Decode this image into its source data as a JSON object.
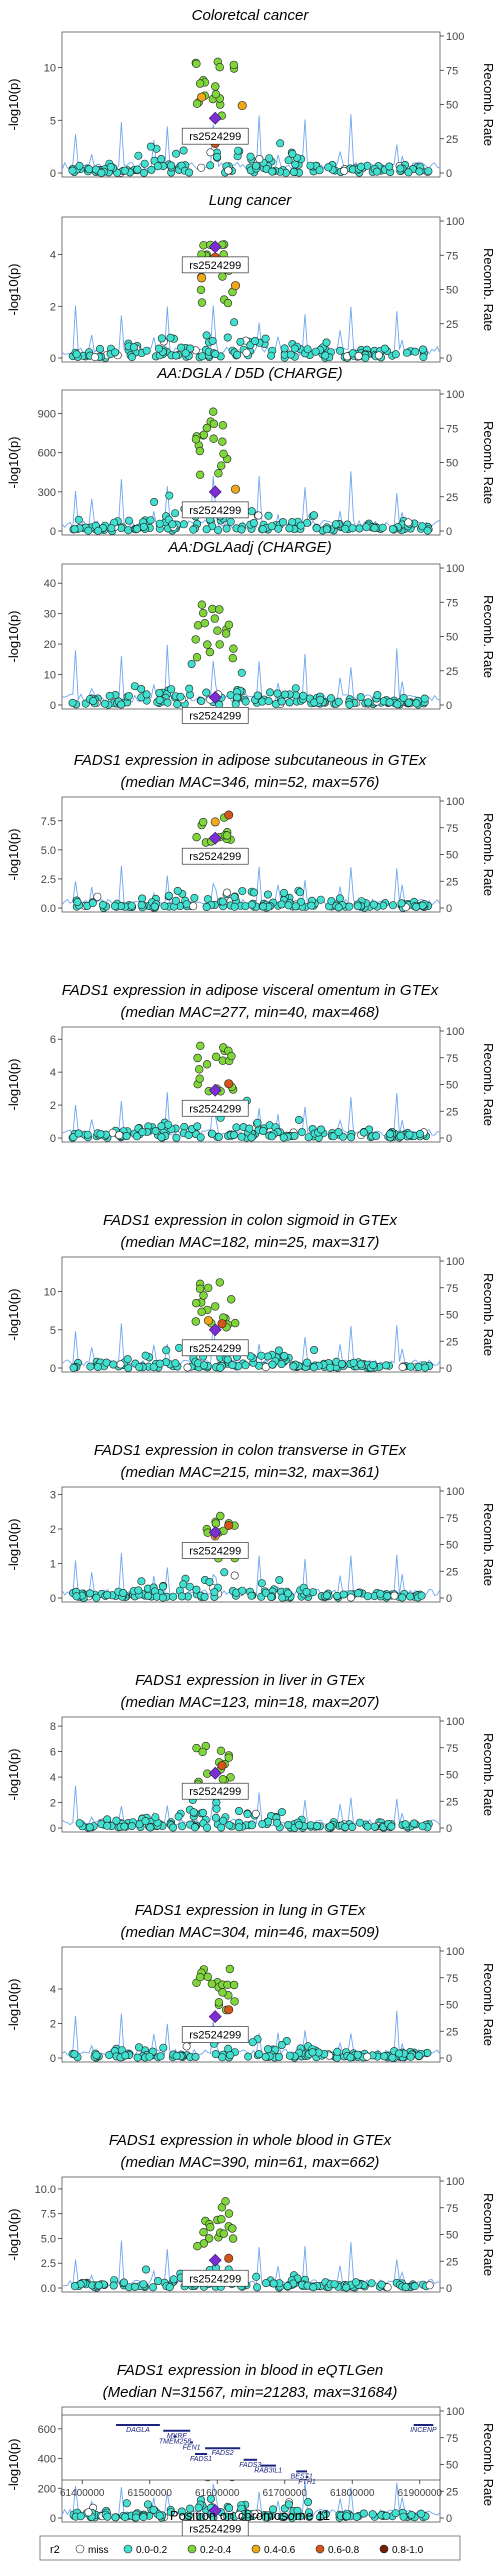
{
  "figure": {
    "snp_label": "rs2524299",
    "y_axis_label": "-log10(p)",
    "right_axis_label": "Recomb. Rate",
    "right_ticks": [
      "0",
      "25",
      "50",
      "75",
      "100"
    ],
    "x_axis_label": "Position on chromosome 11",
    "x_ticks": [
      "61400000",
      "61500000",
      "61600000",
      "61700000",
      "61800000",
      "61900000"
    ],
    "legend": {
      "title": "r2",
      "items": [
        {
          "label": "miss",
          "color": "#ffffff"
        },
        {
          "label": "0.0-0.2",
          "color": "#40e0d0"
        },
        {
          "label": "0.2-0.4",
          "color": "#7fd63b"
        },
        {
          "label": "0.4-0.6",
          "color": "#f0a818"
        },
        {
          "label": "0.6-0.8",
          "color": "#d4541a"
        },
        {
          "label": "0.8-1.0",
          "color": "#7a1a0a"
        }
      ]
    },
    "lead_color": "#7b2fd0",
    "recomb_color": "#6fa8f0"
  },
  "chart_data": [
    {
      "type": "scatter",
      "title_lines": [
        "Coloretcal cancer"
      ],
      "yticks": [
        "0",
        "5",
        "10"
      ],
      "ylim": [
        0,
        13
      ],
      "peak": 11.0,
      "lead": 5.2,
      "near": [
        [
          -0.02,
          7.2,
          "o"
        ],
        [
          0.04,
          6.4,
          "o"
        ],
        [
          0.0,
          2.8,
          "r"
        ]
      ]
    },
    {
      "type": "scatter",
      "title_lines": [
        "Lung cancer"
      ],
      "yticks": [
        "0",
        "2",
        "4"
      ],
      "ylim": [
        0,
        5.3
      ],
      "peak": 4.6,
      "lead": 4.3,
      "near": [
        [
          0.0,
          3.9,
          "r"
        ],
        [
          0.02,
          3.6,
          "o"
        ],
        [
          -0.02,
          3.1,
          "o"
        ],
        [
          0.03,
          2.8,
          "o"
        ]
      ]
    },
    {
      "type": "scatter",
      "title_lines": [
        "AA:DGLA / D5D (CHARGE)"
      ],
      "yticks": [
        "0",
        "300",
        "600",
        "900"
      ],
      "ylim": [
        0,
        1050
      ],
      "peak": 920,
      "lead": 300,
      "near": [
        [
          0.03,
          320,
          "o"
        ]
      ]
    },
    {
      "type": "scatter",
      "title_lines": [
        "AA:DGLAadj (CHARGE)"
      ],
      "yticks": [
        "0",
        "10",
        "20",
        "30",
        "40"
      ],
      "ylim": [
        0,
        45
      ],
      "peak": 34,
      "lead": 2.5,
      "near": []
    },
    {
      "type": "scatter",
      "title_lines": [
        "FADS1 expression in adipose subcutaneous in GTEx",
        "(median MAC=346, min=52, max=576)"
      ],
      "yticks": [
        "0.0",
        "2.5",
        "5.0",
        "7.5"
      ],
      "ylim": [
        0,
        9.2
      ],
      "peak": 8.0,
      "lead": 6.0,
      "near": [
        [
          0.02,
          8.0,
          "r"
        ],
        [
          0.0,
          7.4,
          "o"
        ]
      ]
    },
    {
      "type": "scatter",
      "title_lines": [
        "FADS1 expression in adipose visceral omentum in GTEx",
        "(median MAC=277, min=40, max=468)"
      ],
      "yticks": [
        "0",
        "2",
        "4",
        "6"
      ],
      "ylim": [
        0,
        6.5
      ],
      "peak": 5.6,
      "lead": 2.9,
      "near": [
        [
          0.02,
          3.3,
          "r"
        ]
      ]
    },
    {
      "type": "scatter",
      "title_lines": [
        "FADS1 expression in colon sigmoid in GTEx",
        "(median MAC=182, min=25, max=317)"
      ],
      "yticks": [
        "0",
        "5",
        "10"
      ],
      "ylim": [
        0,
        14
      ],
      "peak": 11.5,
      "lead": 5.0,
      "near": [
        [
          0.01,
          5.8,
          "r"
        ],
        [
          -0.01,
          6.2,
          "o"
        ]
      ]
    },
    {
      "type": "scatter",
      "title_lines": [
        "FADS1 expression in colon transverse in GTEx",
        "(median MAC=215, min=32, max=361)"
      ],
      "yticks": [
        "0",
        "1",
        "2",
        "3"
      ],
      "ylim": [
        0,
        3.1
      ],
      "peak": 2.5,
      "lead": 1.9,
      "near": [
        [
          0.02,
          2.1,
          "r"
        ],
        [
          0.0,
          1.8,
          "o"
        ]
      ]
    },
    {
      "type": "scatter",
      "title_lines": [
        "FADS1 expression in liver in GTEx",
        "(median MAC=123, min=18, max=207)"
      ],
      "yticks": [
        "0",
        "2",
        "4",
        "6",
        "8"
      ],
      "ylim": [
        0,
        8.4
      ],
      "peak": 6.6,
      "lead": 4.3,
      "near": [
        [
          0.01,
          4.9,
          "r"
        ]
      ]
    },
    {
      "type": "scatter",
      "title_lines": [
        "FADS1 expression in lung in GTEx",
        "(median MAC=304, min=46, max=509)"
      ],
      "yticks": [
        "0",
        "2",
        "4"
      ],
      "ylim": [
        0,
        6.2
      ],
      "peak": 5.3,
      "lead": 2.4,
      "near": [
        [
          0.02,
          2.8,
          "r"
        ]
      ]
    },
    {
      "type": "scatter",
      "title_lines": [
        "FADS1 expression in whole blood in GTEx",
        "(median MAC=390, min=61, max=662)"
      ],
      "yticks": [
        "0.0",
        "2.5",
        "5.0",
        "7.5",
        "10.0"
      ],
      "ylim": [
        0,
        10.8
      ],
      "peak": 9.0,
      "lead": 2.8,
      "near": [
        [
          0.02,
          3.0,
          "r"
        ]
      ]
    },
    {
      "type": "scatter",
      "title_lines": [
        "FADS1 expression in blood in eQTLGen",
        "(Median N=31567, min=21283, max=31684)"
      ],
      "yticks": [
        "0",
        "200",
        "400",
        "600"
      ],
      "ylim": [
        0,
        720
      ],
      "peak": 600,
      "lead": 50,
      "near": []
    }
  ],
  "genes": [
    {
      "name": "DAGLA",
      "start": 61450000,
      "end": 61515000,
      "row": 0
    },
    {
      "name": "MYRF",
      "start": 61520000,
      "end": 61560000,
      "row": 1
    },
    {
      "name": "TMEM258",
      "start": 61535000,
      "end": 61540000,
      "row": 2
    },
    {
      "name": "FEN1",
      "start": 61560000,
      "end": 61564000,
      "row": 3
    },
    {
      "name": "FADS2",
      "start": 61582000,
      "end": 61634000,
      "row": 4
    },
    {
      "name": "FADS1",
      "start": 61567000,
      "end": 61585000,
      "row": 5
    },
    {
      "name": "FADS3",
      "start": 61639000,
      "end": 61659000,
      "row": 6
    },
    {
      "name": "RAB3IL1",
      "start": 61664000,
      "end": 61687000,
      "row": 7
    },
    {
      "name": "BEST1",
      "start": 61717000,
      "end": 61733000,
      "row": 8
    },
    {
      "name": "FTH1",
      "start": 61731000,
      "end": 61735000,
      "row": 9
    },
    {
      "name": "INCENP",
      "start": 61891000,
      "end": 61920000,
      "row": 0
    }
  ]
}
